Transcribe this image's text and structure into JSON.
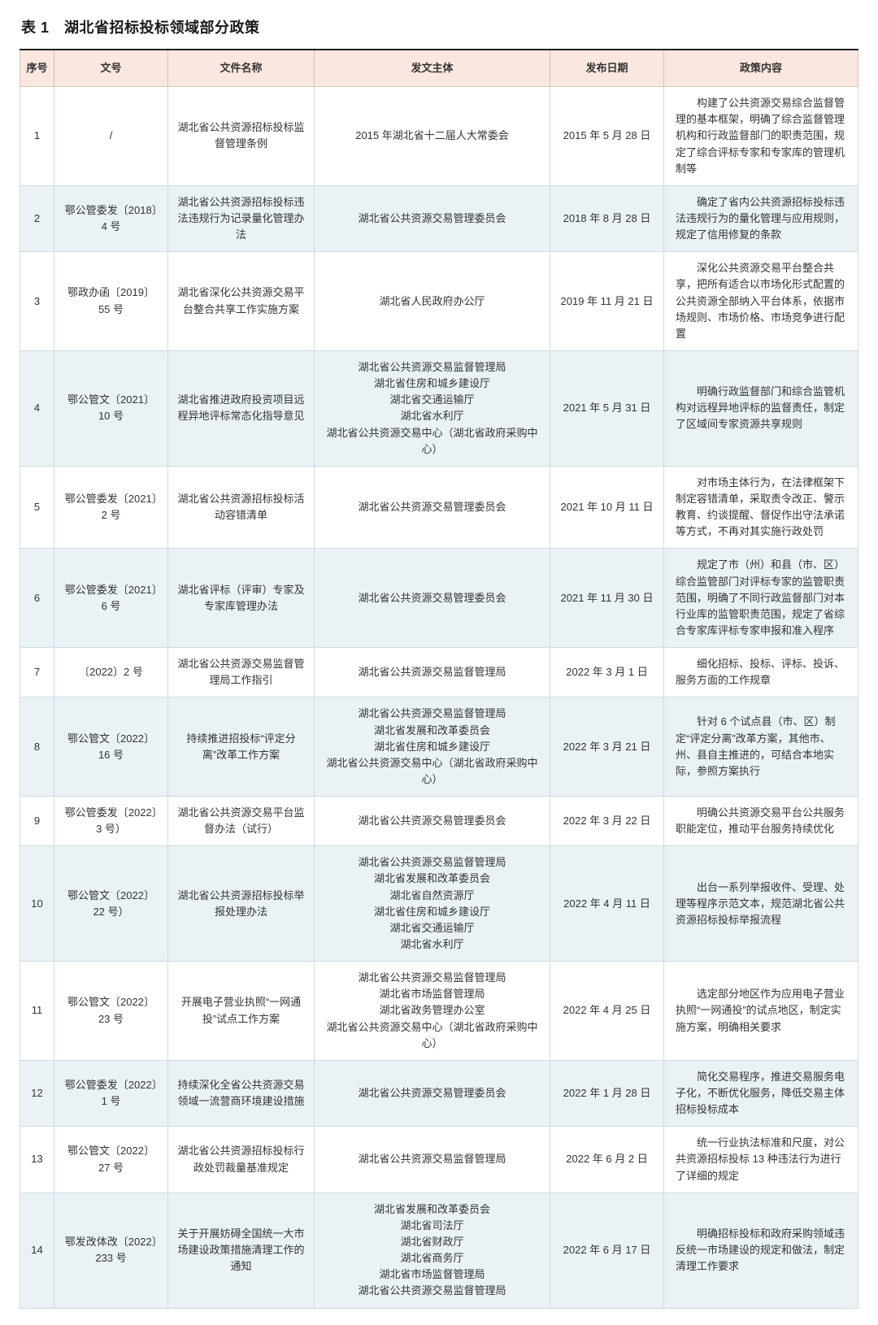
{
  "title": "表 1　湖北省招标投标领域部分政策",
  "colors": {
    "header_bg": "#fae7e0",
    "row_odd_bg": "#ffffff",
    "row_even_bg": "#eaf2f5",
    "border_header": "#d9c3bc",
    "border_body": "#cddde4",
    "text": "#333333",
    "rule": "#222222"
  },
  "columns": [
    "序号",
    "文号",
    "文件名称",
    "发文主体",
    "发布日期",
    "政策内容"
  ],
  "rows": [
    {
      "seq": "1",
      "doc_no": "/",
      "name": "湖北省公共资源招标投标监督管理条例",
      "issuer": "2015 年湖北省十二届人大常委会",
      "date": "2015 年 5 月 28 日",
      "content": "构建了公共资源交易综合监督管理的基本框架，明确了综合监督管理机构和行政监督部门的职责范围，规定了综合评标专家和专家库的管理机制等"
    },
    {
      "seq": "2",
      "doc_no": "鄂公管委发〔2018〕4 号",
      "name": "湖北省公共资源招标投标违法违规行为记录量化管理办法",
      "issuer": "湖北省公共资源交易管理委员会",
      "date": "2018 年 8 月 28 日",
      "content": "确定了省内公共资源招标投标违法违规行为的量化管理与应用规则，规定了信用修复的条款"
    },
    {
      "seq": "3",
      "doc_no": "鄂政办函〔2019〕55 号",
      "name": "湖北省深化公共资源交易平台整合共享工作实施方案",
      "issuer": "湖北省人民政府办公厅",
      "date": "2019 年 11 月 21 日",
      "content": "深化公共资源交易平台整合共享，把所有适合以市场化形式配置的公共资源全部纳入平台体系，依据市场规则、市场价格、市场竞争进行配置"
    },
    {
      "seq": "4",
      "doc_no": "鄂公管文〔2021〕10 号",
      "name": "湖北省推进政府投资项目远程异地评标常态化指导意见",
      "issuer": "湖北省公共资源交易监督管理局\n湖北省住房和城乡建设厅\n湖北省交通运输厅\n湖北省水利厅\n湖北省公共资源交易中心（湖北省政府采购中心）",
      "date": "2021 年 5 月 31 日",
      "content": "明确行政监督部门和综合监管机构对远程异地评标的监督责任，制定了区域间专家资源共享规则"
    },
    {
      "seq": "5",
      "doc_no": "鄂公管委发〔2021〕2 号",
      "name": "湖北省公共资源招标投标活动容错清单",
      "issuer": "湖北省公共资源交易管理委员会",
      "date": "2021 年 10 月 11 日",
      "content": "对市场主体行为，在法律框架下制定容错清单，采取责令改正、警示教育、约谈提醒、督促作出守法承诺等方式，不再对其实施行政处罚"
    },
    {
      "seq": "6",
      "doc_no": "鄂公管委发〔2021〕6 号",
      "name": "湖北省评标（评审）专家及专家库管理办法",
      "issuer": "湖北省公共资源交易管理委员会",
      "date": "2021 年 11 月 30 日",
      "content": "规定了市（州）和县（市、区）综合监管部门对评标专家的监管职责范围，明确了不同行政监督部门对本行业库的监管职责范围，规定了省综合专家库评标专家申报和准入程序"
    },
    {
      "seq": "7",
      "doc_no": "〔2022〕2 号",
      "name": "湖北省公共资源交易监督管理局工作指引",
      "issuer": "湖北省公共资源交易监督管理局",
      "date": "2022 年 3 月 1 日",
      "content": "细化招标、投标、评标、投诉、服务方面的工作规章"
    },
    {
      "seq": "8",
      "doc_no": "鄂公管文〔2022〕16 号",
      "name": "持续推进招投标“评定分离”改革工作方案",
      "issuer": "湖北省公共资源交易监督管理局\n湖北省发展和改革委员会\n湖北省住房和城乡建设厅\n湖北省公共资源交易中心（湖北省政府采购中心）",
      "date": "2022 年 3 月 21 日",
      "content": "针对 6 个试点县（市、区）制定“评定分离”改革方案，其他市、州、县自主推进的，可结合本地实际，参照方案执行"
    },
    {
      "seq": "9",
      "doc_no": "鄂公管委发〔2022〕3 号）",
      "name": "湖北省公共资源交易平台监督办法（试行）",
      "issuer": "湖北省公共资源交易管理委员会",
      "date": "2022 年 3 月 22 日",
      "content": "明确公共资源交易平台公共服务职能定位，推动平台服务持续优化"
    },
    {
      "seq": "10",
      "doc_no": "鄂公管文〔2022〕22 号）",
      "name": "湖北省公共资源招标投标举报处理办法",
      "issuer": "湖北省公共资源交易监督管理局\n湖北省发展和改革委员会\n湖北省自然资源厅\n湖北省住房和城乡建设厅\n湖北省交通运输厅\n湖北省水利厅",
      "date": "2022 年 4 月 11 日",
      "content": "出台一系列举报收件、受理、处理等程序示范文本，规范湖北省公共资源招标投标举报流程"
    },
    {
      "seq": "11",
      "doc_no": "鄂公管文〔2022〕23 号",
      "name": "开展电子营业执照“一网通投”试点工作方案",
      "issuer": "湖北省公共资源交易监督管理局\n湖北省市场监督管理局\n湖北省政务管理办公室\n湖北省公共资源交易中心（湖北省政府采购中心）",
      "date": "2022 年 4 月 25 日",
      "content": "选定部分地区作为应用电子营业执照“一网通投”的试点地区，制定实施方案，明确相关要求"
    },
    {
      "seq": "12",
      "doc_no": "鄂公管委发〔2022〕1 号",
      "name": "持续深化全省公共资源交易领域一流营商环境建设措施",
      "issuer": "湖北省公共资源交易管理委员会",
      "date": "2022 年 1 月 28 日",
      "content": "简化交易程序，推进交易服务电子化，不断优化服务，降低交易主体招标投标成本"
    },
    {
      "seq": "13",
      "doc_no": "鄂公管文〔2022〕27 号",
      "name": "湖北省公共资源招标投标行政处罚裁量基准规定",
      "issuer": "湖北省公共资源交易监督管理局",
      "date": "2022 年 6 月 2 日",
      "content": "统一行业执法标准和尺度，对公共资源招标投标 13 种违法行为进行了详细的规定"
    },
    {
      "seq": "14",
      "doc_no": "鄂发改体改〔2022〕233 号",
      "name": "关于开展妨碍全国统一大市场建设政策措施清理工作的通知",
      "issuer": "湖北省发展和改革委员会\n湖北省司法厅\n湖北省财政厅\n湖北省商务厅\n湖北省市场监督管理局\n湖北省公共资源交易监督管理局",
      "date": "2022 年 6 月 17 日",
      "content": "明确招标投标和政府采购领域违反统一市场建设的规定和做法，制定清理工作要求"
    }
  ]
}
